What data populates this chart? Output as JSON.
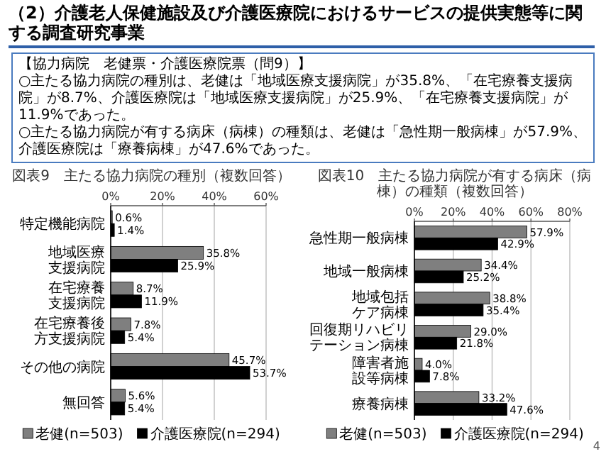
{
  "chart_data": [
    {
      "type": "bar",
      "orientation": "horizontal",
      "title": "図表9　主たる協力病院の種別（複数回答）",
      "annotations": [
        "（2）介護老人保健施設及び介護医療院におけるサービスの提供実態等に関する調査研究事業",
        "【協力病院　老健票・介護医療院票（問9）】",
        "○主たる協力病院の種別は、老健は「地域医療支援病院」が35.8%、「在宅療養支援病院」が8.7%、介護医療院は「地域医療支援病院」が25.9%、「在宅療養支援病院」が11.9%であった。",
        "○主たる協力病院が有する病床（病棟）の種類は、老健は「急性期一般病棟」が57.9%、介護医療院は「療養病棟」が47.6%であった。"
      ],
      "categories": [
        "特定機能病院",
        "地域医療支援病院",
        "在宅療養支援病院",
        "在宅療養後方支援病院",
        "その他の病院",
        "無回答"
      ],
      "series": [
        {
          "name": "老健(n=503)",
          "color": "#7f7f7f",
          "values": [
            0.6,
            35.8,
            8.7,
            7.8,
            45.7,
            5.6
          ],
          "value_labels": [
            "0.6%",
            "35.8%",
            "8.7%",
            "7.8%",
            "45.7%",
            "5.6%"
          ]
        },
        {
          "name": "介護医療院(n=294)",
          "color": "#000000",
          "values": [
            1.4,
            25.9,
            11.9,
            5.4,
            53.7,
            5.4
          ],
          "value_labels": [
            "1.4%",
            "25.9%",
            "11.9%",
            "5.4%",
            "53.7%",
            "5.4%"
          ]
        }
      ],
      "xlim": [
        0,
        60
      ],
      "xticks": [
        {
          "value": 0,
          "label": "0%"
        },
        {
          "value": 20,
          "label": "20%"
        },
        {
          "value": 40,
          "label": "40%"
        },
        {
          "value": 60,
          "label": "60%"
        }
      ],
      "grid": "x",
      "legend": "bottom"
    },
    {
      "type": "bar",
      "orientation": "horizontal",
      "title": "図表10　主たる協力病院が有する病床（病棟）の種類（複数回答）",
      "annotations": [
        "4"
      ],
      "categories": [
        "急性期一般病棟",
        "地域一般病棟",
        "地域包括ケア病棟",
        "回復期リハビリテーション病棟",
        "障害者施設等病棟",
        "療養病棟"
      ],
      "series": [
        {
          "name": "老健(n=503)",
          "color": "#7f7f7f",
          "values": [
            57.9,
            34.4,
            38.8,
            29.0,
            4.0,
            33.2
          ],
          "value_labels": [
            "57.9%",
            "34.4%",
            "38.8%",
            "29.0%",
            "4.0%",
            "33.2%"
          ]
        },
        {
          "name": "介護医療院(n=294)",
          "color": "#000000",
          "values": [
            42.9,
            25.2,
            35.4,
            21.8,
            7.8,
            47.6
          ],
          "value_labels": [
            "42.9%",
            "25.2%",
            "35.4%",
            "21.8%",
            "7.8%",
            "47.6%"
          ]
        }
      ],
      "xlim": [
        0,
        80
      ],
      "xticks": [
        {
          "value": 0,
          "label": "0%"
        },
        {
          "value": 20,
          "label": "20%"
        },
        {
          "value": 40,
          "label": "40%"
        },
        {
          "value": 60,
          "label": "60%"
        },
        {
          "value": 80,
          "label": "80%"
        }
      ],
      "grid": "x",
      "legend": "bottom"
    }
  ]
}
